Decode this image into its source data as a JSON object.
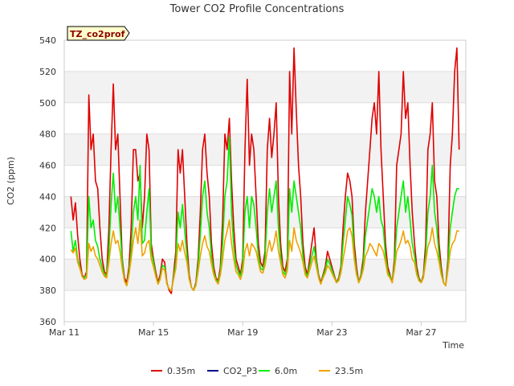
{
  "chart_data": {
    "type": "line",
    "title": "Tower CO2 Profile Concentrations",
    "badge": "TZ_co2prof",
    "xlabel": "Time",
    "ylabel": "CO2 (ppm)",
    "ylim": [
      360,
      540
    ],
    "yticks": [
      360,
      380,
      400,
      420,
      440,
      460,
      480,
      500,
      520,
      540
    ],
    "xlim": [
      0,
      18
    ],
    "xticks": [
      {
        "value": 0,
        "label": "Mar 11"
      },
      {
        "value": 4,
        "label": "Mar 15"
      },
      {
        "value": 8,
        "label": "Mar 19"
      },
      {
        "value": 12,
        "label": "Mar 23"
      },
      {
        "value": 16,
        "label": "Mar 27"
      }
    ],
    "grid": true,
    "legend_position": "bottom",
    "series": [
      {
        "name": "0.35m",
        "color": "#e00000",
        "x": [
          0.3,
          0.4,
          0.5,
          0.6,
          0.7,
          0.8,
          0.9,
          1.0,
          1.1,
          1.2,
          1.3,
          1.4,
          1.5,
          1.6,
          1.7,
          1.8,
          1.9,
          2.0,
          2.1,
          2.2,
          2.3,
          2.4,
          2.5,
          2.6,
          2.7,
          2.8,
          2.9,
          3.0,
          3.1,
          3.2,
          3.3,
          3.4,
          3.5,
          3.6,
          3.7,
          3.8,
          3.9,
          4.0,
          4.1,
          4.2,
          4.3,
          4.4,
          4.5,
          4.6,
          4.7,
          4.8,
          4.9,
          5.0,
          5.1,
          5.2,
          5.3,
          5.4,
          5.5,
          5.6,
          5.7,
          5.8,
          5.9,
          6.0,
          6.1,
          6.2,
          6.3,
          6.4,
          6.5,
          6.6,
          6.7,
          6.8,
          6.9,
          7.0,
          7.1,
          7.2,
          7.3,
          7.4,
          7.5,
          7.6,
          7.7,
          7.8,
          7.9,
          8.0,
          8.1,
          8.2,
          8.3,
          8.4,
          8.5,
          8.6,
          8.7,
          8.8,
          8.9,
          9.0,
          9.1,
          9.2,
          9.3,
          9.4,
          9.5,
          9.6,
          9.7,
          9.8,
          9.9,
          10.0,
          10.1,
          10.2,
          10.3,
          10.4,
          10.5,
          10.6,
          10.7,
          10.8,
          10.9,
          11.0,
          11.1,
          11.2,
          11.3,
          11.4,
          11.5,
          11.6,
          11.7,
          11.8,
          11.9,
          12.0,
          12.1,
          12.2,
          12.3,
          12.4,
          12.5,
          12.6,
          12.7,
          12.8,
          12.9,
          13.0,
          13.1,
          13.2,
          13.3,
          13.4,
          13.5,
          13.6,
          13.7,
          13.8,
          13.9,
          14.0,
          14.1,
          14.2,
          14.3,
          14.4,
          14.5,
          14.6,
          14.7,
          14.8,
          14.9,
          15.0,
          15.1,
          15.2,
          15.3,
          15.4,
          15.5,
          15.6,
          15.7,
          15.8,
          15.9,
          16.0,
          16.1,
          16.2,
          16.3,
          16.4,
          16.5,
          16.6,
          16.7,
          16.8,
          16.9,
          17.0,
          17.1,
          17.2,
          17.3,
          17.4,
          17.5,
          17.6,
          17.7
        ],
        "values": [
          440,
          425,
          436,
          415,
          400,
          390,
          388,
          392,
          505,
          470,
          480,
          450,
          445,
          420,
          400,
          392,
          390,
          420,
          470,
          512,
          470,
          480,
          440,
          400,
          388,
          385,
          395,
          420,
          470,
          470,
          450,
          455,
          420,
          440,
          480,
          470,
          410,
          400,
          392,
          385,
          390,
          400,
          398,
          385,
          380,
          378,
          390,
          405,
          470,
          455,
          470,
          440,
          410,
          390,
          382,
          380,
          385,
          400,
          430,
          470,
          480,
          455,
          440,
          410,
          395,
          388,
          386,
          395,
          425,
          480,
          470,
          490,
          450,
          420,
          400,
          395,
          390,
          400,
          470,
          515,
          460,
          480,
          470,
          440,
          410,
          398,
          395,
          405,
          470,
          490,
          465,
          480,
          500,
          440,
          410,
          395,
          392,
          400,
          520,
          480,
          535,
          495,
          460,
          440,
          410,
          395,
          390,
          400,
          410,
          420,
          400,
          390,
          385,
          390,
          395,
          405,
          400,
          395,
          390,
          385,
          388,
          395,
          420,
          440,
          455,
          450,
          440,
          410,
          395,
          385,
          390,
          400,
          430,
          450,
          470,
          490,
          500,
          480,
          520,
          470,
          440,
          410,
          395,
          390,
          385,
          400,
          460,
          470,
          480,
          520,
          490,
          500,
          460,
          430,
          410,
          395,
          388,
          385,
          390,
          410,
          470,
          480,
          500,
          450,
          440,
          410,
          395,
          385,
          383,
          400,
          460,
          480,
          520,
          535,
          470
        ]
      },
      {
        "name": "CO2_P3",
        "color": "#00008b",
        "x": [],
        "values": []
      },
      {
        "name": "6.0m",
        "color": "#00ee00",
        "x": [
          0.3,
          0.4,
          0.5,
          0.6,
          0.7,
          0.8,
          0.9,
          1.0,
          1.1,
          1.2,
          1.3,
          1.4,
          1.5,
          1.6,
          1.7,
          1.8,
          1.9,
          2.0,
          2.1,
          2.2,
          2.3,
          2.4,
          2.5,
          2.6,
          2.7,
          2.8,
          2.9,
          3.0,
          3.1,
          3.2,
          3.3,
          3.4,
          3.5,
          3.6,
          3.7,
          3.8,
          3.9,
          4.0,
          4.1,
          4.2,
          4.3,
          4.4,
          4.5,
          4.6,
          4.7,
          4.8,
          4.9,
          5.0,
          5.1,
          5.2,
          5.3,
          5.4,
          5.5,
          5.6,
          5.7,
          5.8,
          5.9,
          6.0,
          6.1,
          6.2,
          6.3,
          6.4,
          6.5,
          6.6,
          6.7,
          6.8,
          6.9,
          7.0,
          7.1,
          7.2,
          7.3,
          7.4,
          7.5,
          7.6,
          7.7,
          7.8,
          7.9,
          8.0,
          8.1,
          8.2,
          8.3,
          8.4,
          8.5,
          8.6,
          8.7,
          8.8,
          8.9,
          9.0,
          9.1,
          9.2,
          9.3,
          9.4,
          9.5,
          9.6,
          9.7,
          9.8,
          9.9,
          10.0,
          10.1,
          10.2,
          10.3,
          10.4,
          10.5,
          10.6,
          10.7,
          10.8,
          10.9,
          11.0,
          11.1,
          11.2,
          11.3,
          11.4,
          11.5,
          11.6,
          11.7,
          11.8,
          11.9,
          12.0,
          12.1,
          12.2,
          12.3,
          12.4,
          12.5,
          12.6,
          12.7,
          12.8,
          12.9,
          13.0,
          13.1,
          13.2,
          13.3,
          13.4,
          13.5,
          13.6,
          13.7,
          13.8,
          13.9,
          14.0,
          14.1,
          14.2,
          14.3,
          14.4,
          14.5,
          14.6,
          14.7,
          14.8,
          14.9,
          15.0,
          15.1,
          15.2,
          15.3,
          15.4,
          15.5,
          15.6,
          15.7,
          15.8,
          15.9,
          16.0,
          16.1,
          16.2,
          16.3,
          16.4,
          16.5,
          16.6,
          16.7,
          16.8,
          16.9,
          17.0,
          17.1,
          17.2,
          17.3,
          17.4,
          17.5,
          17.6,
          17.7
        ],
        "values": [
          418,
          405,
          412,
          400,
          395,
          389,
          388,
          390,
          440,
          420,
          425,
          412,
          408,
          400,
          395,
          390,
          389,
          405,
          435,
          455,
          430,
          440,
          420,
          398,
          386,
          383,
          392,
          405,
          430,
          440,
          425,
          460,
          410,
          412,
          430,
          445,
          405,
          398,
          390,
          384,
          388,
          396,
          395,
          384,
          381,
          380,
          388,
          398,
          430,
          420,
          435,
          418,
          402,
          388,
          382,
          380,
          384,
          396,
          415,
          440,
          450,
          430,
          420,
          402,
          392,
          387,
          385,
          392,
          410,
          440,
          450,
          478,
          430,
          408,
          396,
          392,
          389,
          396,
          430,
          440,
          420,
          440,
          435,
          420,
          402,
          394,
          393,
          400,
          430,
          445,
          430,
          440,
          450,
          420,
          402,
          392,
          390,
          396,
          445,
          430,
          450,
          440,
          430,
          420,
          402,
          392,
          389,
          396,
          402,
          408,
          398,
          389,
          384,
          389,
          393,
          400,
          397,
          393,
          389,
          385,
          387,
          393,
          410,
          425,
          440,
          435,
          428,
          403,
          392,
          385,
          389,
          396,
          415,
          425,
          435,
          445,
          440,
          430,
          440,
          425,
          420,
          402,
          392,
          389,
          385,
          396,
          420,
          430,
          440,
          450,
          430,
          440,
          425,
          410,
          402,
          392,
          387,
          385,
          389,
          402,
          430,
          440,
          460,
          430,
          420,
          402,
          392,
          385,
          383,
          396,
          420,
          430,
          440,
          445,
          445
        ]
      },
      {
        "name": "23.5m",
        "color": "#f0a000",
        "x": [
          0.3,
          0.4,
          0.5,
          0.6,
          0.7,
          0.8,
          0.9,
          1.0,
          1.1,
          1.2,
          1.3,
          1.4,
          1.5,
          1.6,
          1.7,
          1.8,
          1.9,
          2.0,
          2.1,
          2.2,
          2.3,
          2.4,
          2.5,
          2.6,
          2.7,
          2.8,
          2.9,
          3.0,
          3.1,
          3.2,
          3.3,
          3.4,
          3.5,
          3.6,
          3.7,
          3.8,
          3.9,
          4.0,
          4.1,
          4.2,
          4.3,
          4.4,
          4.5,
          4.6,
          4.7,
          4.8,
          4.9,
          5.0,
          5.1,
          5.2,
          5.3,
          5.4,
          5.5,
          5.6,
          5.7,
          5.8,
          5.9,
          6.0,
          6.1,
          6.2,
          6.3,
          6.4,
          6.5,
          6.6,
          6.7,
          6.8,
          6.9,
          7.0,
          7.1,
          7.2,
          7.3,
          7.4,
          7.5,
          7.6,
          7.7,
          7.8,
          7.9,
          8.0,
          8.1,
          8.2,
          8.3,
          8.4,
          8.5,
          8.6,
          8.7,
          8.8,
          8.9,
          9.0,
          9.1,
          9.2,
          9.3,
          9.4,
          9.5,
          9.6,
          9.7,
          9.8,
          9.9,
          10.0,
          10.1,
          10.2,
          10.3,
          10.4,
          10.5,
          10.6,
          10.7,
          10.8,
          10.9,
          11.0,
          11.1,
          11.2,
          11.3,
          11.4,
          11.5,
          11.6,
          11.7,
          11.8,
          11.9,
          12.0,
          12.1,
          12.2,
          12.3,
          12.4,
          12.5,
          12.6,
          12.7,
          12.8,
          12.9,
          13.0,
          13.1,
          13.2,
          13.3,
          13.4,
          13.5,
          13.6,
          13.7,
          13.8,
          13.9,
          14.0,
          14.1,
          14.2,
          14.3,
          14.4,
          14.5,
          14.6,
          14.7,
          14.8,
          14.9,
          15.0,
          15.1,
          15.2,
          15.3,
          15.4,
          15.5,
          15.6,
          15.7,
          15.8,
          15.9,
          16.0,
          16.1,
          16.2,
          16.3,
          16.4,
          16.5,
          16.6,
          16.7,
          16.8,
          16.9,
          17.0,
          17.1,
          17.2,
          17.3,
          17.4,
          17.5,
          17.6,
          17.7
        ],
        "values": [
          406,
          404,
          407,
          398,
          394,
          389,
          387,
          388,
          410,
          405,
          408,
          402,
          400,
          396,
          392,
          389,
          388,
          398,
          410,
          418,
          410,
          412,
          405,
          394,
          386,
          383,
          390,
          400,
          412,
          420,
          410,
          425,
          402,
          404,
          410,
          412,
          400,
          395,
          389,
          384,
          387,
          394,
          393,
          384,
          381,
          380,
          387,
          394,
          410,
          405,
          412,
          404,
          398,
          387,
          382,
          380,
          383,
          392,
          402,
          410,
          415,
          408,
          405,
          397,
          390,
          386,
          384,
          390,
          400,
          412,
          418,
          425,
          410,
          400,
          392,
          390,
          387,
          392,
          405,
          410,
          402,
          410,
          408,
          405,
          398,
          392,
          391,
          396,
          405,
          412,
          405,
          410,
          418,
          405,
          398,
          390,
          388,
          393,
          412,
          405,
          420,
          412,
          408,
          404,
          398,
          390,
          388,
          393,
          398,
          402,
          395,
          388,
          384,
          388,
          391,
          396,
          394,
          391,
          388,
          385,
          386,
          391,
          400,
          408,
          418,
          420,
          415,
          400,
          390,
          385,
          388,
          393,
          402,
          405,
          410,
          408,
          405,
          402,
          410,
          408,
          405,
          398,
          390,
          388,
          385,
          393,
          405,
          408,
          412,
          418,
          410,
          412,
          408,
          400,
          398,
          390,
          386,
          385,
          388,
          398,
          408,
          412,
          420,
          410,
          405,
          398,
          390,
          385,
          383,
          393,
          405,
          410,
          412,
          418,
          418
        ]
      }
    ]
  }
}
